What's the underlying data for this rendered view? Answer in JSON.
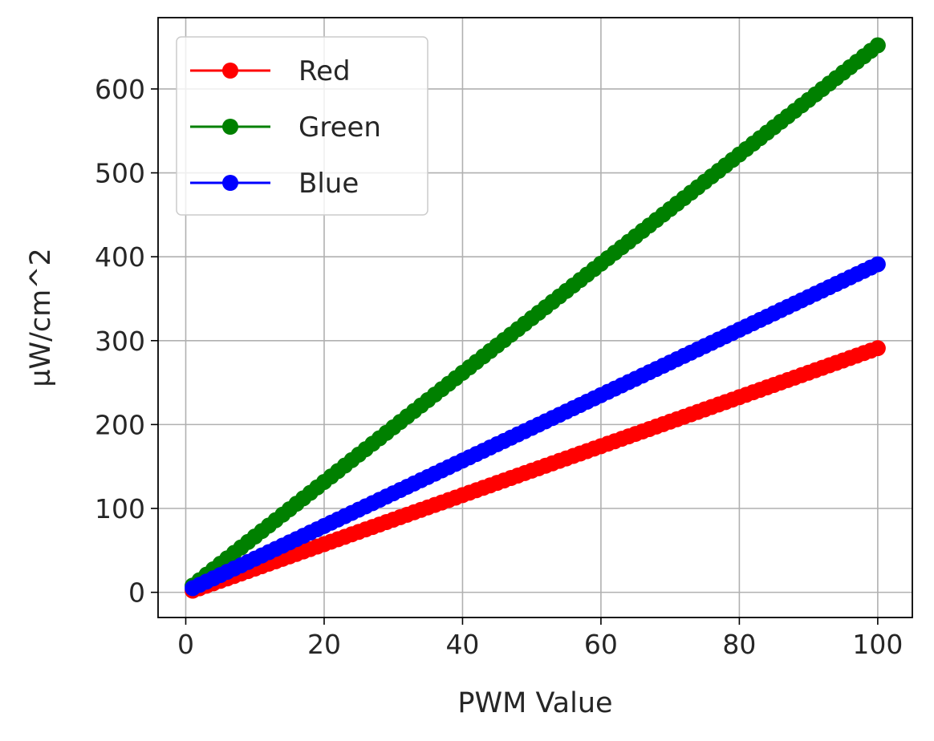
{
  "chart_data": {
    "type": "line",
    "xlabel": "PWM Value",
    "ylabel": "µW/cm^2",
    "xlim": [
      -4,
      105
    ],
    "ylim": [
      -30,
      685
    ],
    "xticks": [
      0,
      20,
      40,
      60,
      80,
      100
    ],
    "yticks": [
      0,
      100,
      200,
      300,
      400,
      500,
      600
    ],
    "grid": true,
    "legend_position": "top-left",
    "x_range": {
      "start": 1,
      "end": 100,
      "step": 1
    },
    "series": [
      {
        "name": "Red",
        "color": "#ff0000",
        "y_start": 2,
        "y_end": 291
      },
      {
        "name": "Green",
        "color": "#008000",
        "y_start": 8,
        "y_end": 652
      },
      {
        "name": "Blue",
        "color": "#0000ff",
        "y_start": 5,
        "y_end": 391
      }
    ]
  }
}
